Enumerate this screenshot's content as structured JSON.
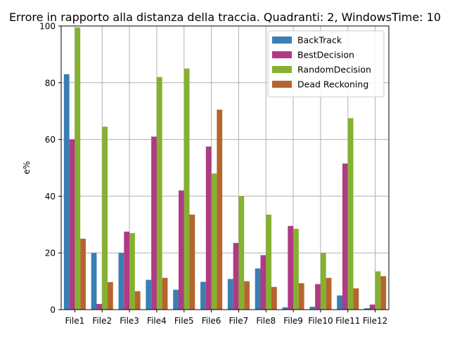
{
  "chart_data": {
    "type": "bar",
    "title": "Errore in rapporto alla distanza della traccia. Quadranti: 2, WindowsTime: 10",
    "xlabel": "",
    "ylabel": "e%",
    "ylim": [
      0,
      100
    ],
    "yticks": [
      "0",
      "20",
      "40",
      "60",
      "80",
      "100"
    ],
    "grid": true,
    "legend_position": "top-right",
    "categories": [
      "File1",
      "File2",
      "File3",
      "File4",
      "File5",
      "File6",
      "File7",
      "File8",
      "File9",
      "File10",
      "File11",
      "File12"
    ],
    "series": [
      {
        "name": "BackTrack",
        "color": "#3a7eb3",
        "values": [
          83,
          20,
          20,
          10.5,
          7,
          9.8,
          10.8,
          14.5,
          0.8,
          1,
          5,
          0.5
        ]
      },
      {
        "name": "BestDecision",
        "color": "#b03a84",
        "values": [
          60,
          2,
          27.5,
          61,
          42,
          57.5,
          23.5,
          19.2,
          29.5,
          9,
          51.5,
          1.8
        ]
      },
      {
        "name": "RandomDecision",
        "color": "#85b131",
        "values": [
          99.5,
          64.5,
          27,
          82,
          85,
          48,
          40,
          33.5,
          28.5,
          20,
          67.5,
          13.5
        ]
      },
      {
        "name": "Dead Reckoning",
        "color": "#b5652e",
        "values": [
          25,
          9.7,
          6.5,
          11.2,
          33.5,
          70.5,
          10,
          8,
          9.3,
          11.2,
          7.5,
          11.8
        ]
      }
    ]
  }
}
